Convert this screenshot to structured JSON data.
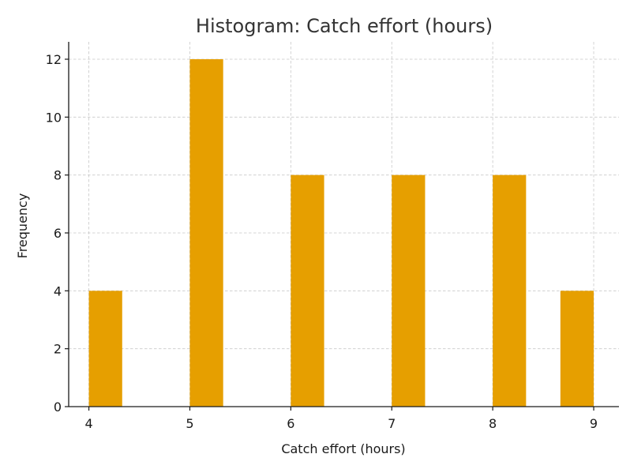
{
  "chart_data": {
    "type": "bar",
    "title": "Histogram: Catch effort (hours)",
    "xlabel": "Catch effort (hours)",
    "ylabel": "Frequency",
    "xlim": [
      3.8,
      9.25
    ],
    "ylim": [
      0,
      12.6
    ],
    "xticks": [
      4,
      5,
      6,
      7,
      8,
      9
    ],
    "yticks": [
      0,
      2,
      4,
      6,
      8,
      10,
      12
    ],
    "grid": true,
    "bar_color": "#E69F00",
    "bins": [
      {
        "start": 4.0,
        "end": 4.33,
        "count": 4
      },
      {
        "start": 5.0,
        "end": 5.33,
        "count": 12
      },
      {
        "start": 6.0,
        "end": 6.33,
        "count": 8
      },
      {
        "start": 7.0,
        "end": 7.33,
        "count": 8
      },
      {
        "start": 8.0,
        "end": 8.33,
        "count": 8
      },
      {
        "start": 8.67,
        "end": 9.0,
        "count": 4
      }
    ]
  }
}
